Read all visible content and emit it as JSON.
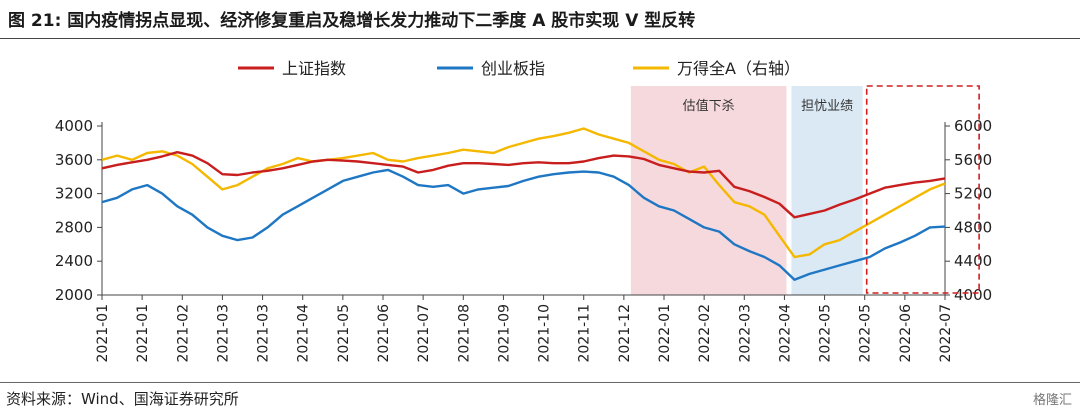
{
  "title": "图 21:  国内疫情拐点显现、经济修复重启及稳增长发力推动下二季度 A 股市实现 V 型反转",
  "source": "资料来源：Wind、国海证券研究所",
  "watermark": "格隆汇",
  "colors": {
    "sh": "#c81e1e",
    "cyb": "#1f77c4",
    "wanda": "#f5b800",
    "band_pink": "#f6d9dd",
    "band_blue": "#dbe9f5",
    "box": "#d21e1e"
  },
  "chart_data": {
    "type": "line",
    "legend_position": "top",
    "series": [
      {
        "name": "上证指数",
        "axis": "left",
        "values": [
          3500,
          3540,
          3570,
          3600,
          3640,
          3690,
          3650,
          3560,
          3430,
          3420,
          3450,
          3470,
          3500,
          3540,
          3580,
          3600,
          3590,
          3580,
          3560,
          3540,
          3520,
          3450,
          3480,
          3530,
          3560,
          3560,
          3550,
          3540,
          3560,
          3570,
          3560,
          3560,
          3580,
          3620,
          3650,
          3640,
          3610,
          3540,
          3500,
          3460,
          3450,
          3470,
          3280,
          3230,
          3160,
          3080,
          2920,
          2960,
          3000,
          3070,
          3130,
          3200,
          3270,
          3300,
          3330,
          3350,
          3380
        ]
      },
      {
        "name": "创业板指",
        "axis": "left",
        "values": [
          3100,
          3150,
          3250,
          3300,
          3200,
          3050,
          2950,
          2800,
          2700,
          2650,
          2680,
          2800,
          2950,
          3050,
          3150,
          3250,
          3350,
          3400,
          3450,
          3480,
          3400,
          3300,
          3280,
          3300,
          3200,
          3250,
          3270,
          3290,
          3350,
          3400,
          3430,
          3450,
          3460,
          3450,
          3400,
          3300,
          3150,
          3050,
          3000,
          2900,
          2800,
          2750,
          2600,
          2520,
          2450,
          2350,
          2180,
          2250,
          2300,
          2350,
          2400,
          2450,
          2550,
          2620,
          2700,
          2800,
          2810
        ]
      },
      {
        "name": "万得全A（右轴）",
        "axis": "right",
        "values": [
          5600,
          5650,
          5600,
          5680,
          5700,
          5650,
          5550,
          5400,
          5250,
          5300,
          5400,
          5500,
          5550,
          5620,
          5580,
          5600,
          5620,
          5650,
          5680,
          5600,
          5580,
          5620,
          5650,
          5680,
          5720,
          5700,
          5680,
          5750,
          5800,
          5850,
          5880,
          5920,
          5970,
          5900,
          5850,
          5800,
          5700,
          5600,
          5550,
          5450,
          5520,
          5300,
          5100,
          5050,
          4950,
          4700,
          4450,
          4480,
          4600,
          4650,
          4750,
          4850,
          4950,
          5050,
          5150,
          5250,
          5320
        ]
      }
    ],
    "x_tick_labels": [
      "2021-01",
      "2021-01",
      "2021-02",
      "2021-03",
      "2021-03",
      "2021-04",
      "2021-05",
      "2021-06",
      "2021-07",
      "2021-08",
      "2021-09",
      "2021-10",
      "2021-11",
      "2021-12",
      "2022-01",
      "2022-02",
      "2022-03",
      "2022-04",
      "2022-05",
      "2022-05",
      "2022-06",
      "2022-07"
    ],
    "y_left": {
      "ticks": [
        2000,
        2400,
        2800,
        3200,
        3600,
        4000
      ],
      "range": [
        2000,
        4000
      ]
    },
    "y_right": {
      "ticks": [
        4000,
        4400,
        4800,
        5200,
        5600,
        6000
      ],
      "range": [
        4000,
        6000
      ]
    },
    "annotations": [
      {
        "label": "估值下杀",
        "from_tick": 13,
        "to_tick": 17,
        "style": "pink-band"
      },
      {
        "label": "担忧业绩",
        "from_tick": 17,
        "to_tick": 19,
        "style": "blue-band"
      }
    ],
    "highlight_box": {
      "from_tick": 19,
      "to_tick": 21.8
    }
  }
}
